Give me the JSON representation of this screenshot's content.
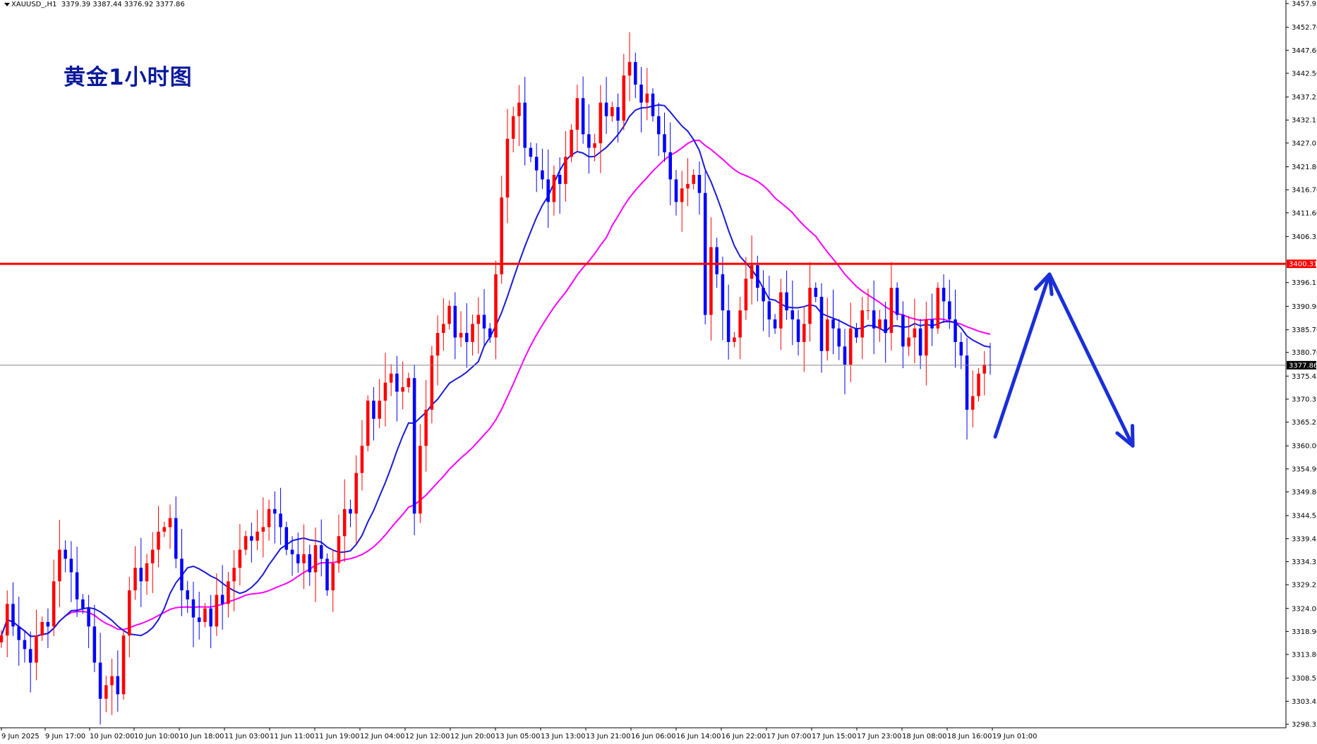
{
  "header": {
    "symbol": "XAUUSD_,H1",
    "ohlc": "3379.39 3387.44 3376.92 3377.86"
  },
  "caption": "黄金1小时图",
  "colors": {
    "bull": "#ff0000",
    "bear": "#0000ff",
    "ma_fast": "#1a1ad8",
    "ma_slow": "#ff00ff",
    "resistance": "#ff0000",
    "price_line": "#888888",
    "arrow": "#1a2fd8"
  },
  "chart_data": {
    "type": "candlestick",
    "symbol": "XAUUSD_",
    "timeframe": "H1",
    "ylim": [
      3298.35,
      3460
    ],
    "y_ticks": [
      "3457.95",
      "3452.70",
      "3447.60",
      "3442.50",
      "3437.25",
      "3432.15",
      "3427.05",
      "3421.80",
      "3416.70",
      "3411.60",
      "3406.35",
      "3396.15",
      "3390.90",
      "3385.70",
      "3380.70",
      "3375.45",
      "3370.35",
      "3365.25",
      "3360.00",
      "3354.90",
      "3349.80",
      "3344.55",
      "3339.45",
      "3334.35",
      "3329.25",
      "3324.00",
      "3318.90",
      "3313.80",
      "3308.55",
      "3303.45",
      "3298.35"
    ],
    "x_labels": [
      "9 Jun 2025",
      "9 Jun 17:00",
      "10 Jun 02:00",
      "10 Jun 10:00",
      "10 Jun 18:00",
      "11 Jun 03:00",
      "11 Jun 11:00",
      "11 Jun 19:00",
      "12 Jun 04:00",
      "12 Jun 12:00",
      "12 Jun 20:00",
      "13 Jun 05:00",
      "13 Jun 13:00",
      "13 Jun 21:00",
      "16 Jun 06:00",
      "16 Jun 14:00",
      "16 Jun 22:00",
      "17 Jun 07:00",
      "17 Jun 15:00",
      "17 Jun 23:00",
      "18 Jun 08:00",
      "18 Jun 16:00",
      "19 Jun 01:00"
    ],
    "resistance_level": {
      "value": 3400.31,
      "label": "3400.31"
    },
    "current_price": {
      "value": 3377.86,
      "label": "3377.86"
    },
    "closes": [
      3318,
      3325,
      3320,
      3317,
      3315,
      3312,
      3318,
      3321,
      3320,
      3330,
      3337,
      3335,
      3332,
      3326,
      3324,
      3320,
      3312,
      3304,
      3307,
      3309,
      3305,
      3318,
      3328,
      3333,
      3330,
      3334,
      3337,
      3341,
      3342,
      3344,
      3335,
      3328,
      3326,
      3322,
      3321,
      3324,
      3320,
      3327,
      3325,
      3330,
      3333,
      3337,
      3340,
      3339,
      3341,
      3342,
      3346,
      3345,
      3342,
      3337,
      3336,
      3334,
      3336,
      3332,
      3338,
      3335,
      3328,
      3334,
      3340,
      3346,
      3345,
      3354,
      3360,
      3370,
      3366,
      3370,
      3374,
      3376,
      3372,
      3373,
      3375,
      3345,
      3360,
      3368,
      3380,
      3385,
      3387,
      3391,
      3384,
      3385,
      3383,
      3387,
      3389,
      3386,
      3384,
      3398,
      3415,
      3428,
      3433,
      3436,
      3426,
      3424,
      3421,
      3419,
      3414,
      3420,
      3418,
      3424,
      3430,
      3437,
      3429,
      3426,
      3427,
      3436,
      3433,
      3435,
      3432,
      3442,
      3445,
      3440,
      3436,
      3438,
      3433,
      3429,
      3425,
      3419,
      3414,
      3417,
      3418,
      3420,
      3416,
      3389,
      3404,
      3398,
      3390,
      3383,
      3384,
      3390,
      3397,
      3400,
      3395,
      3392,
      3388,
      3386,
      3394,
      3390,
      3388,
      3383,
      3387,
      3395,
      3393,
      3381,
      3388,
      3386,
      3382,
      3378,
      3386,
      3384,
      3390,
      3390,
      3386,
      3388,
      3385,
      3395,
      3389,
      3382,
      3384,
      3386,
      3380,
      3388,
      3386,
      3395,
      3392,
      3388,
      3383,
      3380,
      3368,
      3371,
      3376,
      3378,
      3377.86
    ],
    "projection": [
      {
        "x": "19 Jun 01:00",
        "y": 3362
      },
      {
        "x": "peak",
        "y": 3398
      },
      {
        "x": "target",
        "y": 3360
      }
    ],
    "series": [
      {
        "type": "moving-average"
      },
      {
        "type": "moving-average"
      }
    ]
  }
}
